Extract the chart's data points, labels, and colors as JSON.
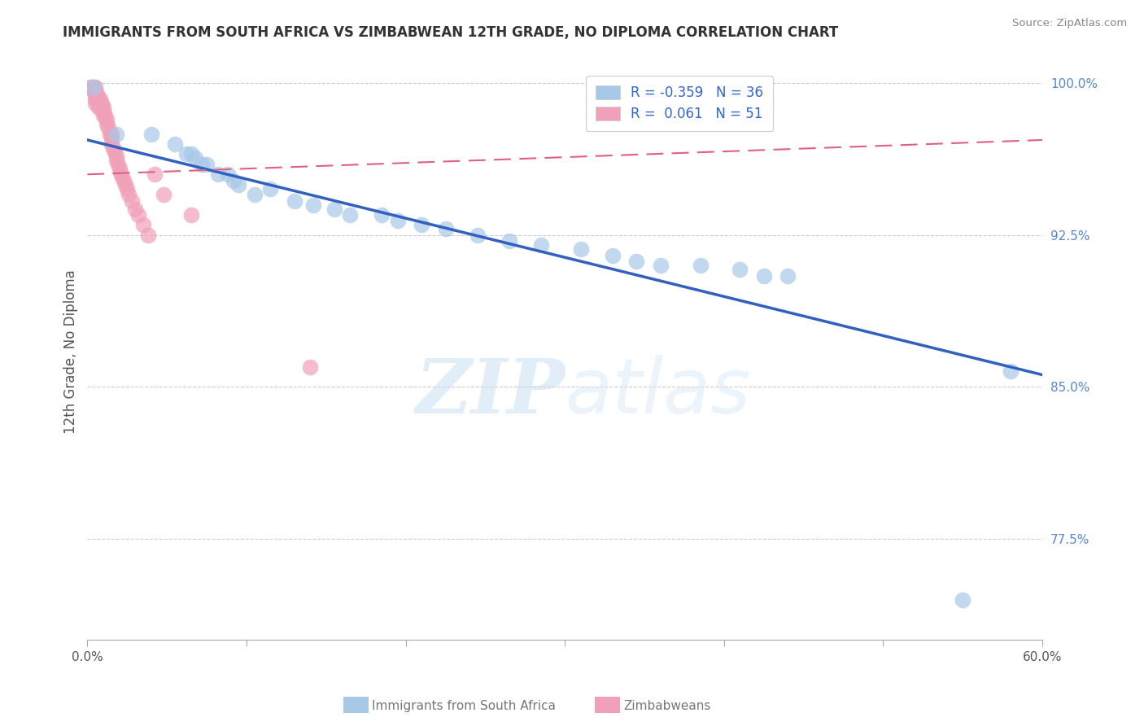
{
  "title": "IMMIGRANTS FROM SOUTH AFRICA VS ZIMBABWEAN 12TH GRADE, NO DIPLOMA CORRELATION CHART",
  "source": "Source: ZipAtlas.com",
  "xlabel_blue": "Immigrants from South Africa",
  "xlabel_pink": "Zimbabweans",
  "ylabel": "12th Grade, No Diploma",
  "xlim": [
    0.0,
    0.6
  ],
  "ylim": [
    0.725,
    1.01
  ],
  "blue_R": -0.359,
  "blue_N": 36,
  "pink_R": 0.061,
  "pink_N": 51,
  "blue_color": "#a8c8e8",
  "pink_color": "#f0a0b8",
  "blue_line_color": "#3060c0",
  "pink_line_color": "#e06080",
  "watermark_zip": "ZIP",
  "watermark_atlas": "atlas",
  "blue_trend_x": [
    0.0,
    0.6
  ],
  "blue_trend_y": [
    0.972,
    0.856
  ],
  "pink_trend_x": [
    0.0,
    0.6
  ],
  "pink_trend_y": [
    0.955,
    0.972
  ],
  "blue_x": [
    0.004,
    0.018,
    0.04,
    0.055,
    0.062,
    0.065,
    0.068,
    0.072,
    0.075,
    0.082,
    0.088,
    0.092,
    0.095,
    0.105,
    0.115,
    0.13,
    0.142,
    0.155,
    0.165,
    0.185,
    0.195,
    0.21,
    0.225,
    0.245,
    0.265,
    0.285,
    0.31,
    0.33,
    0.345,
    0.36,
    0.385,
    0.41,
    0.425,
    0.44,
    0.55,
    0.58
  ],
  "blue_y": [
    0.998,
    0.975,
    0.975,
    0.97,
    0.965,
    0.965,
    0.963,
    0.96,
    0.96,
    0.955,
    0.955,
    0.952,
    0.95,
    0.945,
    0.948,
    0.942,
    0.94,
    0.938,
    0.935,
    0.935,
    0.932,
    0.93,
    0.928,
    0.925,
    0.922,
    0.92,
    0.918,
    0.915,
    0.912,
    0.91,
    0.91,
    0.908,
    0.905,
    0.905,
    0.745,
    0.858
  ],
  "pink_x": [
    0.002,
    0.003,
    0.004,
    0.004,
    0.005,
    0.005,
    0.005,
    0.005,
    0.005,
    0.006,
    0.006,
    0.007,
    0.007,
    0.007,
    0.008,
    0.008,
    0.008,
    0.009,
    0.009,
    0.01,
    0.01,
    0.01,
    0.011,
    0.012,
    0.012,
    0.013,
    0.014,
    0.015,
    0.015,
    0.015,
    0.016,
    0.017,
    0.018,
    0.018,
    0.019,
    0.02,
    0.021,
    0.022,
    0.023,
    0.024,
    0.025,
    0.026,
    0.028,
    0.03,
    0.032,
    0.035,
    0.038,
    0.042,
    0.048,
    0.065,
    0.14
  ],
  "pink_y": [
    0.998,
    0.998,
    0.998,
    0.996,
    0.998,
    0.996,
    0.994,
    0.992,
    0.99,
    0.995,
    0.992,
    0.993,
    0.99,
    0.988,
    0.992,
    0.99,
    0.988,
    0.99,
    0.988,
    0.988,
    0.986,
    0.984,
    0.984,
    0.982,
    0.98,
    0.978,
    0.975,
    0.975,
    0.973,
    0.97,
    0.968,
    0.966,
    0.964,
    0.962,
    0.96,
    0.958,
    0.956,
    0.954,
    0.952,
    0.95,
    0.948,
    0.945,
    0.942,
    0.938,
    0.935,
    0.93,
    0.925,
    0.955,
    0.945,
    0.935,
    0.86
  ]
}
